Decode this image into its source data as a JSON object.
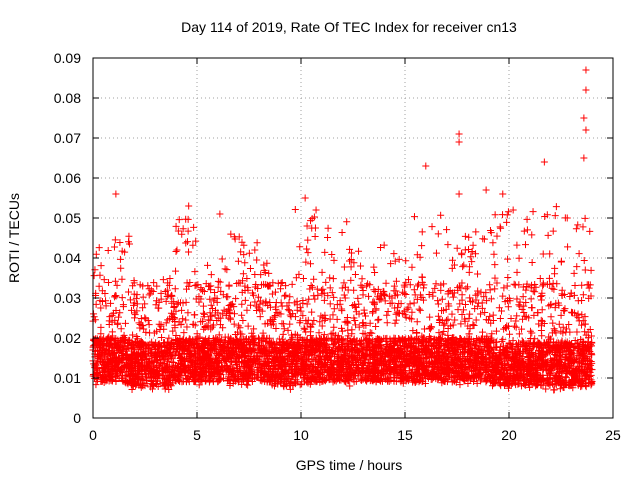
{
  "chart_data": {
    "type": "scatter",
    "title": "Day 114 of 2019, Rate Of TEC Index for receiver cn13",
    "xlabel": "GPS time / hours",
    "ylabel": "ROTI / TECUs",
    "xlim": [
      0,
      25
    ],
    "ylim": [
      0,
      0.09
    ],
    "xticks": [
      0,
      5,
      10,
      15,
      20,
      25
    ],
    "xtick_labels": [
      "0",
      "5",
      "10",
      "15",
      "20",
      "25"
    ],
    "yticks": [
      0,
      0.01,
      0.02,
      0.03,
      0.04,
      0.05,
      0.06,
      0.07,
      0.08,
      0.09
    ],
    "ytick_labels": [
      "0",
      "0.01",
      "0.02",
      "0.03",
      "0.04",
      "0.05",
      "0.06",
      "0.07",
      "0.08",
      "0.09"
    ],
    "grid": true,
    "marker": "+",
    "color": "#ff0000",
    "notable_points": [
      {
        "x": 23.7,
        "y": 0.087
      },
      {
        "x": 23.7,
        "y": 0.082
      },
      {
        "x": 23.6,
        "y": 0.075
      },
      {
        "x": 23.7,
        "y": 0.072
      },
      {
        "x": 23.6,
        "y": 0.065
      },
      {
        "x": 17.6,
        "y": 0.071
      },
      {
        "x": 17.6,
        "y": 0.069
      },
      {
        "x": 16.0,
        "y": 0.063
      },
      {
        "x": 21.7,
        "y": 0.064
      },
      {
        "x": 17.6,
        "y": 0.056
      },
      {
        "x": 18.9,
        "y": 0.057
      },
      {
        "x": 19.7,
        "y": 0.056
      },
      {
        "x": 1.1,
        "y": 0.056
      },
      {
        "x": 10.2,
        "y": 0.055
      },
      {
        "x": 4.6,
        "y": 0.053
      },
      {
        "x": 6.1,
        "y": 0.051
      },
      {
        "x": 20.2,
        "y": 0.052
      },
      {
        "x": 22.8,
        "y": 0.05
      }
    ],
    "clusters": [
      {
        "x_start": 0.0,
        "x_end": 1.8,
        "y_low": 0.004,
        "y_high": 0.046
      },
      {
        "x_start": 1.8,
        "x_end": 3.8,
        "y_low": 0.003,
        "y_high": 0.035
      },
      {
        "x_start": 3.8,
        "x_end": 5.0,
        "y_low": 0.004,
        "y_high": 0.05
      },
      {
        "x_start": 5.0,
        "x_end": 6.5,
        "y_low": 0.004,
        "y_high": 0.04
      },
      {
        "x_start": 6.5,
        "x_end": 8.5,
        "y_low": 0.004,
        "y_high": 0.046
      },
      {
        "x_start": 8.5,
        "x_end": 9.7,
        "y_low": 0.003,
        "y_high": 0.036
      },
      {
        "x_start": 9.7,
        "x_end": 12.2,
        "y_low": 0.004,
        "y_high": 0.054
      },
      {
        "x_start": 12.2,
        "x_end": 15.0,
        "y_low": 0.004,
        "y_high": 0.044
      },
      {
        "x_start": 15.0,
        "x_end": 17.0,
        "y_low": 0.004,
        "y_high": 0.051
      },
      {
        "x_start": 17.0,
        "x_end": 19.2,
        "y_low": 0.004,
        "y_high": 0.047
      },
      {
        "x_start": 19.2,
        "x_end": 21.5,
        "y_low": 0.003,
        "y_high": 0.052
      },
      {
        "x_start": 21.5,
        "x_end": 24.0,
        "y_low": 0.003,
        "y_high": 0.053
      }
    ]
  }
}
